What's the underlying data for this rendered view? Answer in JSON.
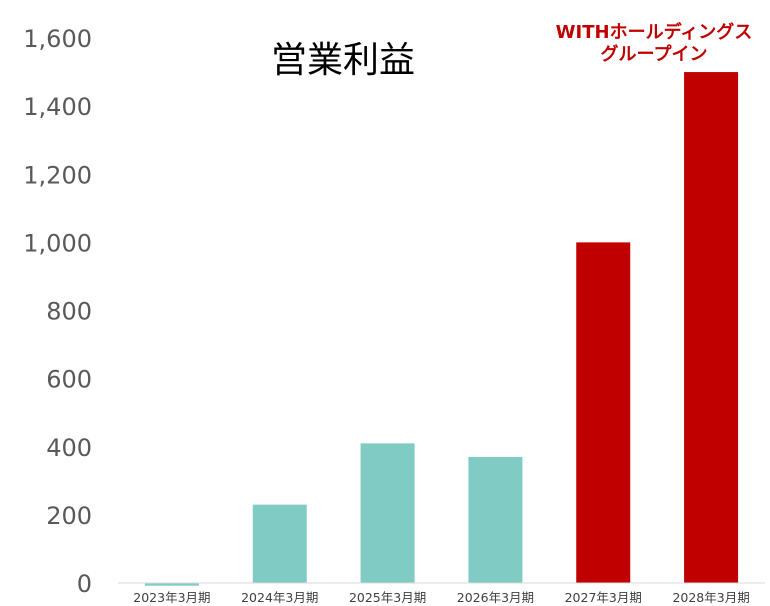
{
  "chart_data": {
    "type": "bar",
    "title": "営業利益",
    "annotation": [
      "WITHホールディングス",
      "グループイン"
    ],
    "categories": [
      "2023年3月期",
      "2024年3月期",
      "2025年3月期",
      "2026年3月期",
      "2027年3月期",
      "2028年3月期"
    ],
    "values": [
      -8,
      230,
      410,
      370,
      1000,
      1500
    ],
    "ylim": [
      0,
      1600
    ],
    "yticks": [
      "0",
      "200",
      "400",
      "600",
      "800",
      "1,000",
      "1,200",
      "1,400",
      "1,600"
    ],
    "ytick_values": [
      0,
      200,
      400,
      600,
      800,
      1000,
      1200,
      1400,
      1600
    ],
    "grid": false,
    "colors": {
      "base": "#80CBC4",
      "highlight": "#C00000",
      "axis": "#D9D9D9"
    },
    "bar_colors": [
      "base",
      "base",
      "base",
      "base",
      "highlight",
      "highlight"
    ]
  }
}
